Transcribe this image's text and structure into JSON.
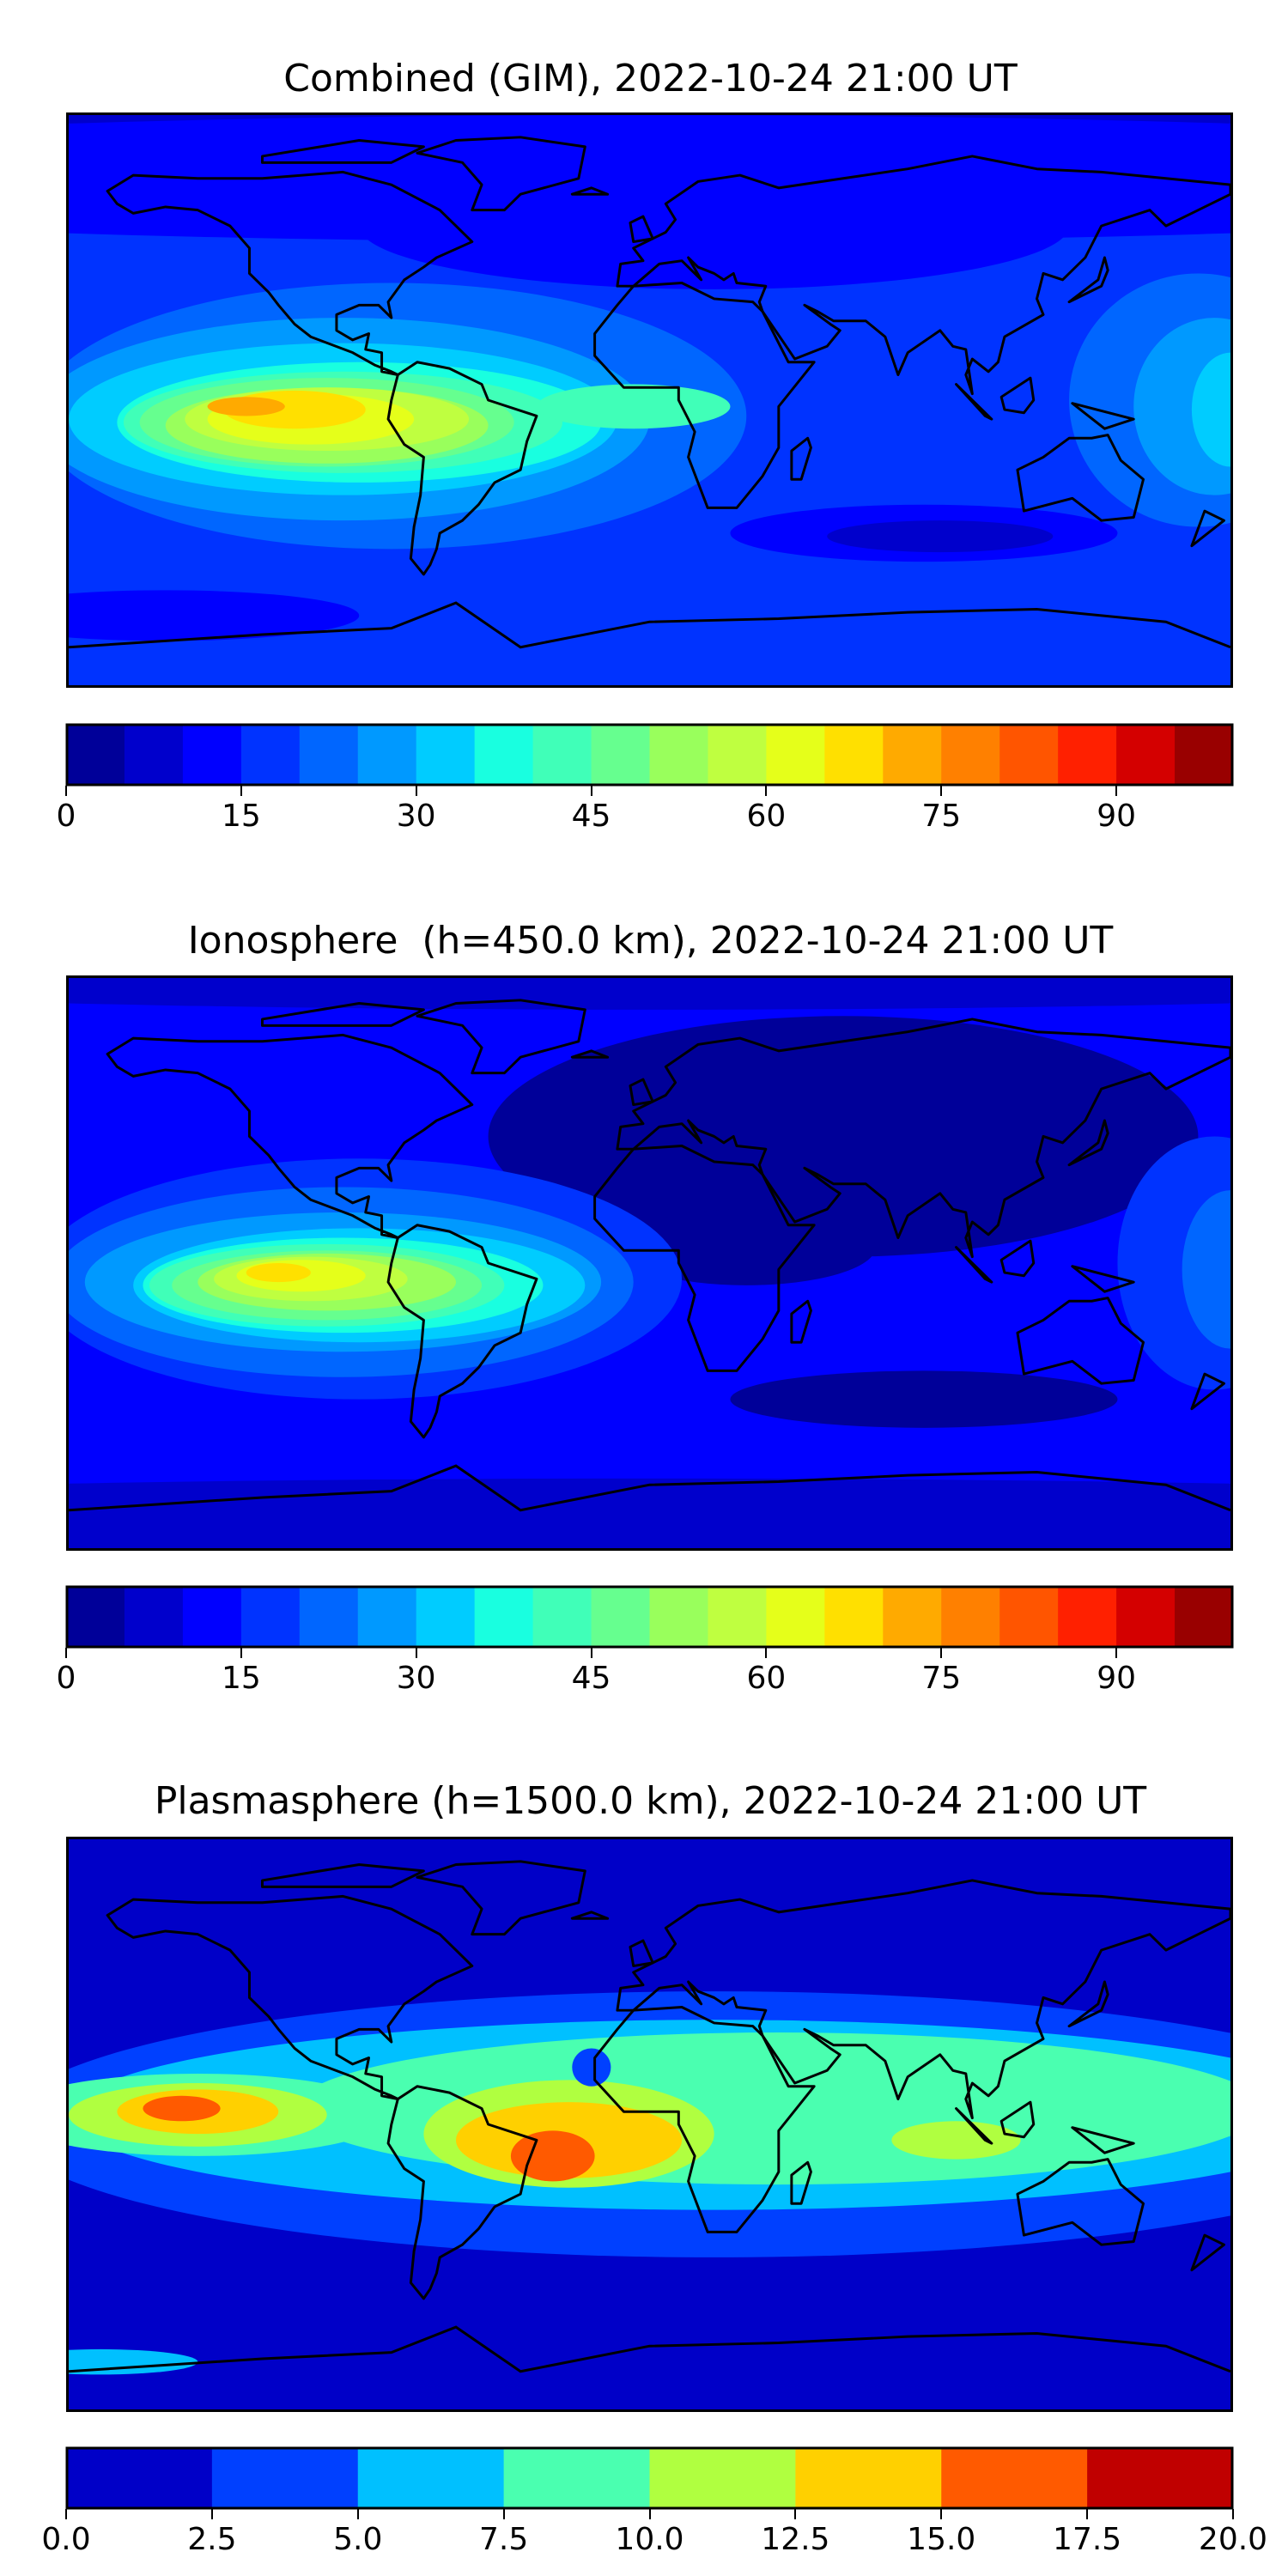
{
  "chart_data": [
    {
      "type": "heatmap",
      "title": "Combined (GIM), 2022-10-24 21:00 UT",
      "colorbar": {
        "range": [
          0,
          100
        ],
        "levels": [
          0,
          5,
          10,
          15,
          20,
          25,
          30,
          35,
          40,
          45,
          50,
          55,
          60,
          65,
          70,
          75,
          80,
          85,
          90,
          95,
          100
        ],
        "colors": [
          "#000099",
          "#0000cc",
          "#0000ff",
          "#0033ff",
          "#0066ff",
          "#0099ff",
          "#00ccff",
          "#19ffe0",
          "#40ffb8",
          "#66ff8f",
          "#99ff5c",
          "#bfff40",
          "#e5ff1a",
          "#ffe000",
          "#ffaa00",
          "#ff8000",
          "#ff5500",
          "#ff2000",
          "#d40000",
          "#990000"
        ],
        "ticks": [
          0,
          15,
          30,
          45,
          60,
          75,
          90
        ],
        "tick_labels": [
          "0",
          "15",
          "30",
          "45",
          "60",
          "75",
          "90"
        ]
      },
      "field_peak": {
        "value_range": [
          70,
          75
        ],
        "region": "eastern Pacific / South America, near equator"
      }
    },
    {
      "type": "heatmap",
      "title": "Ionosphere  (h=450.0 km), 2022-10-24 21:00 UT",
      "colorbar": {
        "range": [
          0,
          100
        ],
        "levels": [
          0,
          5,
          10,
          15,
          20,
          25,
          30,
          35,
          40,
          45,
          50,
          55,
          60,
          65,
          70,
          75,
          80,
          85,
          90,
          95,
          100
        ],
        "colors": [
          "#000099",
          "#0000cc",
          "#0000ff",
          "#0033ff",
          "#0066ff",
          "#0099ff",
          "#00ccff",
          "#19ffe0",
          "#40ffb8",
          "#66ff8f",
          "#99ff5c",
          "#bfff40",
          "#e5ff1a",
          "#ffe000",
          "#ffaa00",
          "#ff8000",
          "#ff5500",
          "#ff2000",
          "#d40000",
          "#990000"
        ],
        "ticks": [
          0,
          15,
          30,
          45,
          60,
          75,
          90
        ],
        "tick_labels": [
          "0",
          "15",
          "30",
          "45",
          "60",
          "75",
          "90"
        ]
      },
      "field_peak": {
        "value_range": [
          65,
          70
        ],
        "region": "eastern Pacific, near equator"
      }
    },
    {
      "type": "heatmap",
      "title": "Plasmasphere (h=1500.0 km), 2022-10-24 21:00 UT",
      "colorbar": {
        "range": [
          0,
          20
        ],
        "levels": [
          0,
          2.5,
          5,
          7.5,
          10,
          12.5,
          15,
          17.5,
          20
        ],
        "colors": [
          "#0000c8",
          "#0040ff",
          "#00c0ff",
          "#4affb0",
          "#b0ff40",
          "#ffd000",
          "#ff5a00",
          "#c00000"
        ],
        "ticks": [
          0,
          2.5,
          5,
          7.5,
          10,
          12.5,
          15,
          17.5,
          20
        ],
        "tick_labels": [
          "0.0",
          "2.5",
          "5.0",
          "7.5",
          "10.0",
          "12.5",
          "15.0",
          "17.5",
          "20.0"
        ]
      },
      "field_peak": {
        "value_range": [
          15,
          17.5
        ],
        "region": "tropical Atlantic and central Pacific"
      }
    }
  ]
}
